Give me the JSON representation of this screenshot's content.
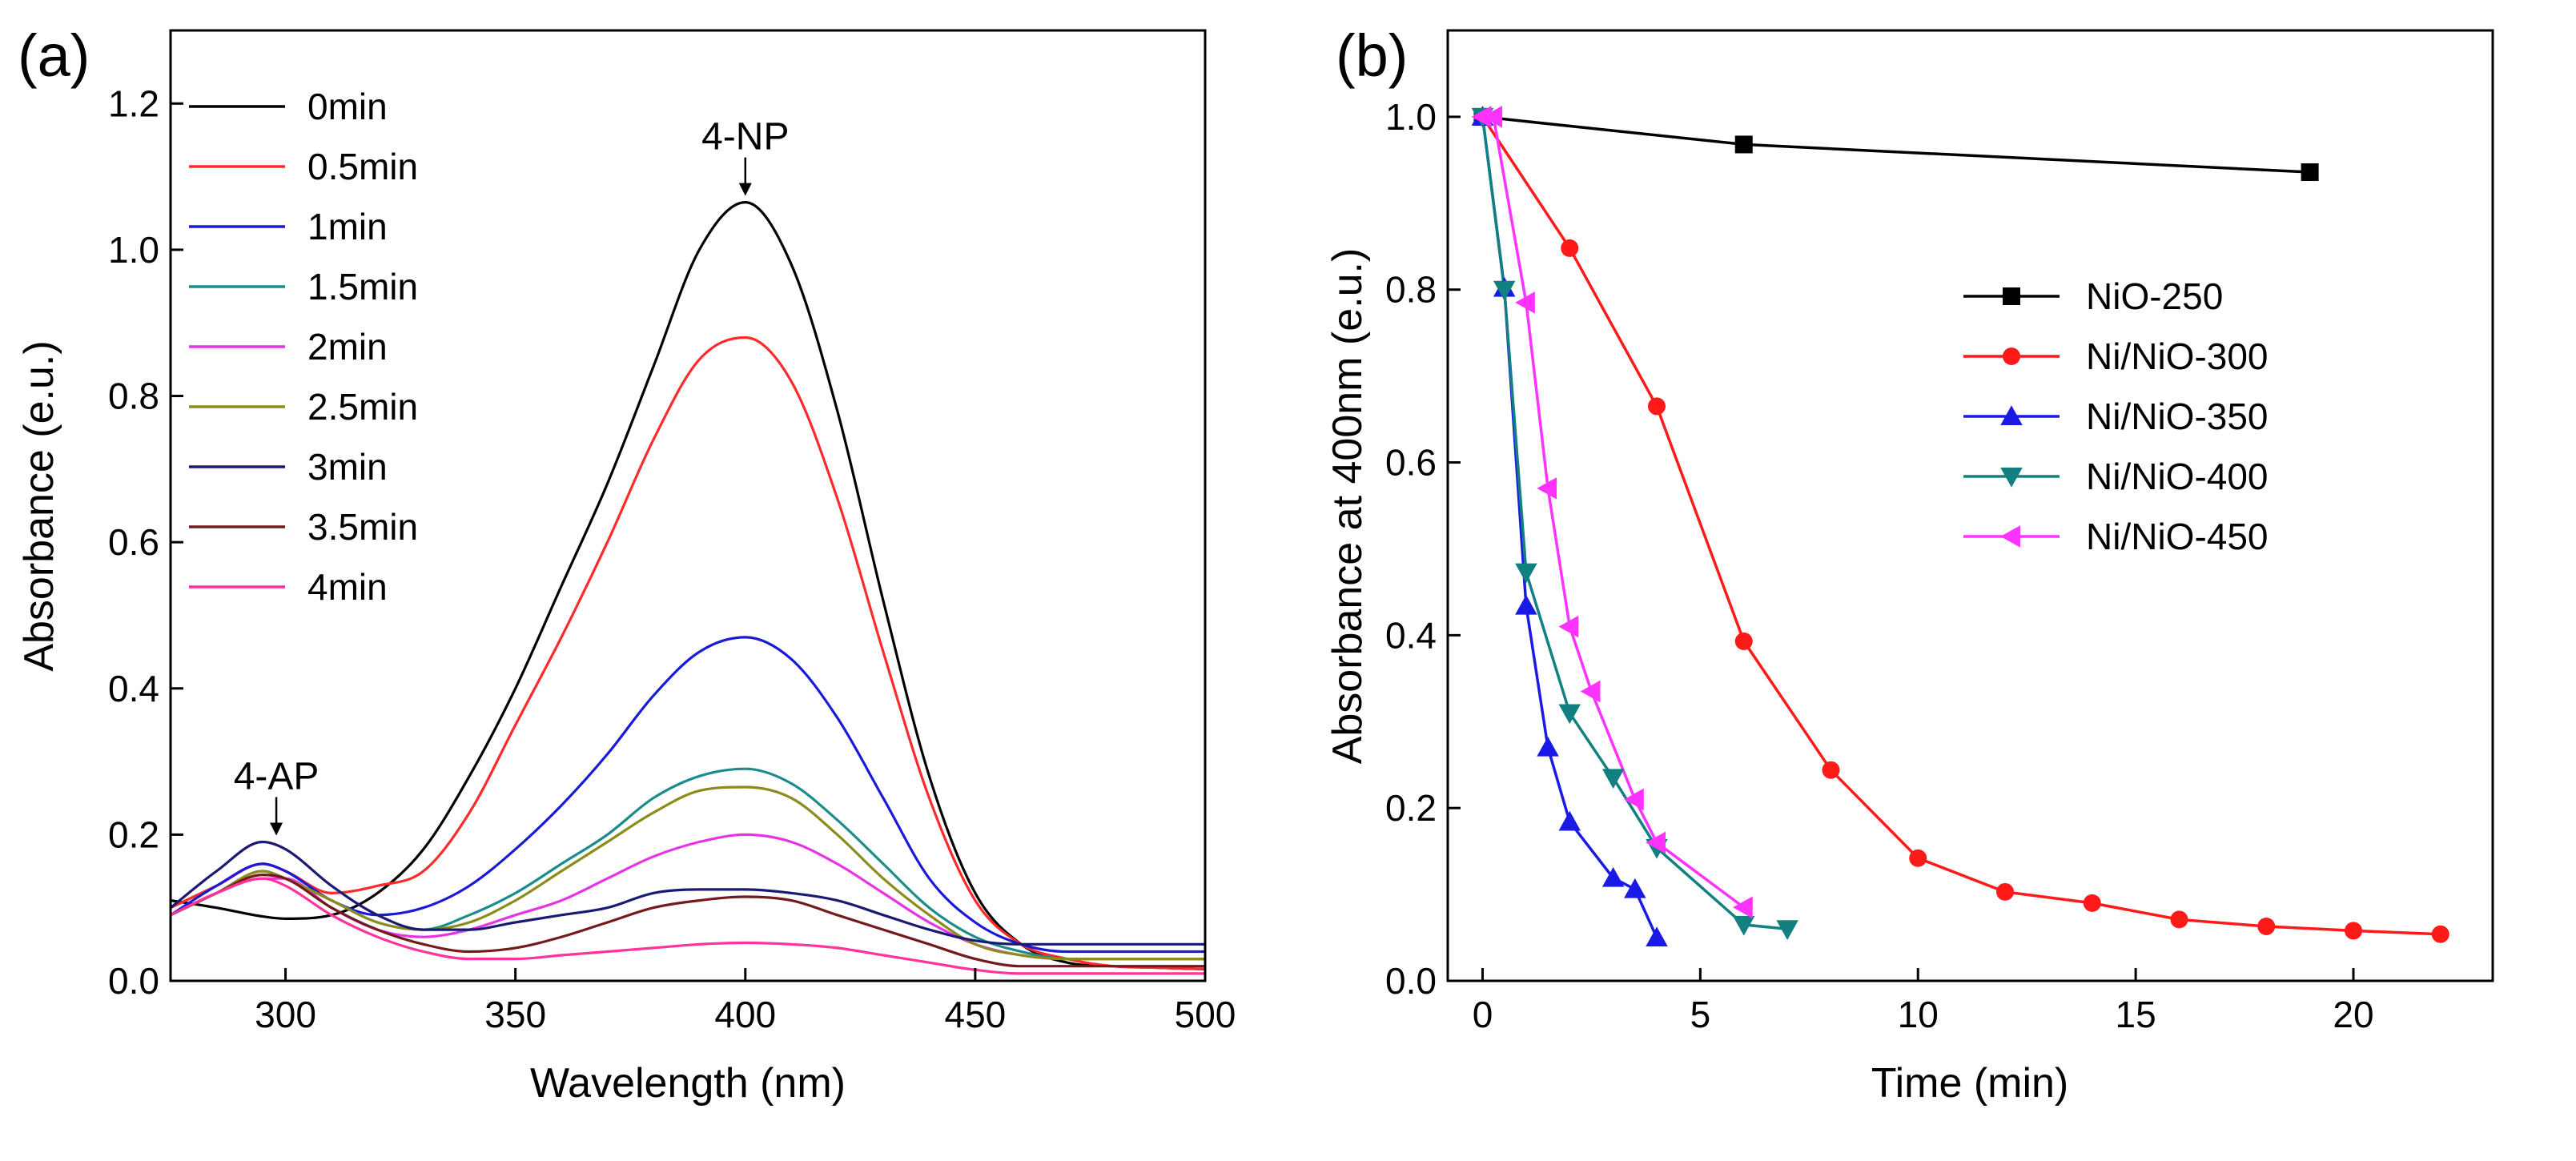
{
  "chart_data": [
    {
      "panel": "(a)",
      "type": "line",
      "title": "",
      "xlabel": "Wavelength (nm)",
      "ylabel": "Absorbance (e.u.)",
      "xlim": [
        275,
        500
      ],
      "ylim": [
        0.0,
        1.3
      ],
      "xticks": [
        300,
        350,
        400,
        450,
        500
      ],
      "xtick_labels": [
        "300",
        "350",
        "400",
        "450",
        "500"
      ],
      "yticks": [
        0.0,
        0.2,
        0.4,
        0.6,
        0.8,
        1.0,
        1.2
      ],
      "ytick_labels": [
        "0.0",
        "0.2",
        "0.4",
        "0.6",
        "0.8",
        "1.0",
        "1.2"
      ],
      "grid": false,
      "legend_position": "top-left",
      "annotations": [
        {
          "text": "4-NP",
          "x": 400,
          "y": 1.065
        },
        {
          "text": "4-AP",
          "x": 298,
          "y": 0.19
        }
      ],
      "series": [
        {
          "name": "0min",
          "color": "#000000",
          "x": [
            275,
            285,
            295,
            300,
            310,
            320,
            330,
            340,
            350,
            360,
            370,
            380,
            390,
            400,
            410,
            420,
            430,
            440,
            450,
            460,
            470,
            480,
            490,
            500
          ],
          "values": [
            0.11,
            0.1,
            0.088,
            0.085,
            0.09,
            0.12,
            0.18,
            0.28,
            0.4,
            0.54,
            0.68,
            0.84,
            1.0,
            1.065,
            0.98,
            0.78,
            0.52,
            0.28,
            0.12,
            0.05,
            0.025,
            0.02,
            0.018,
            0.016
          ]
        },
        {
          "name": "0.5min",
          "color": "#ff2a2a",
          "x": [
            275,
            285,
            295,
            300,
            310,
            320,
            330,
            340,
            350,
            360,
            370,
            380,
            390,
            400,
            410,
            420,
            430,
            440,
            450,
            460,
            470,
            480,
            490,
            500
          ],
          "values": [
            0.1,
            0.13,
            0.16,
            0.15,
            0.12,
            0.13,
            0.15,
            0.23,
            0.35,
            0.47,
            0.6,
            0.74,
            0.85,
            0.88,
            0.82,
            0.66,
            0.45,
            0.25,
            0.11,
            0.05,
            0.03,
            0.02,
            0.018,
            0.016
          ]
        },
        {
          "name": "1min",
          "color": "#1a1ad6",
          "x": [
            275,
            285,
            295,
            300,
            310,
            320,
            330,
            340,
            350,
            360,
            370,
            380,
            390,
            400,
            410,
            420,
            430,
            440,
            450,
            460,
            470,
            480,
            490,
            500
          ],
          "values": [
            0.09,
            0.13,
            0.16,
            0.15,
            0.11,
            0.09,
            0.1,
            0.13,
            0.18,
            0.24,
            0.31,
            0.39,
            0.45,
            0.47,
            0.44,
            0.36,
            0.25,
            0.14,
            0.08,
            0.05,
            0.04,
            0.04,
            0.04,
            0.04
          ]
        },
        {
          "name": "1.5min",
          "color": "#1a8c8c",
          "x": [
            275,
            285,
            295,
            300,
            310,
            320,
            330,
            340,
            350,
            360,
            370,
            380,
            390,
            400,
            410,
            420,
            430,
            440,
            450,
            460,
            470,
            480,
            490,
            500
          ],
          "values": [
            0.09,
            0.12,
            0.15,
            0.14,
            0.11,
            0.08,
            0.07,
            0.09,
            0.12,
            0.16,
            0.2,
            0.25,
            0.28,
            0.29,
            0.27,
            0.22,
            0.16,
            0.1,
            0.06,
            0.04,
            0.03,
            0.03,
            0.03,
            0.03
          ]
        },
        {
          "name": "2min",
          "color": "#e633e6",
          "x": [
            275,
            285,
            295,
            300,
            310,
            320,
            330,
            340,
            350,
            360,
            370,
            380,
            390,
            400,
            410,
            420,
            430,
            440,
            450,
            460,
            470,
            480,
            490,
            500
          ],
          "values": [
            0.09,
            0.12,
            0.14,
            0.14,
            0.1,
            0.07,
            0.06,
            0.07,
            0.09,
            0.11,
            0.14,
            0.17,
            0.19,
            0.2,
            0.19,
            0.16,
            0.12,
            0.08,
            0.05,
            0.035,
            0.03,
            0.03,
            0.03,
            0.03
          ]
        },
        {
          "name": "2.5min",
          "color": "#8c8c1a",
          "x": [
            275,
            285,
            295,
            300,
            310,
            320,
            330,
            340,
            350,
            360,
            370,
            380,
            390,
            400,
            410,
            420,
            430,
            440,
            450,
            460,
            470,
            480,
            490,
            500
          ],
          "values": [
            0.09,
            0.12,
            0.15,
            0.14,
            0.11,
            0.08,
            0.07,
            0.08,
            0.11,
            0.15,
            0.19,
            0.23,
            0.26,
            0.265,
            0.25,
            0.2,
            0.14,
            0.09,
            0.05,
            0.035,
            0.03,
            0.03,
            0.03,
            0.03
          ]
        },
        {
          "name": "3min",
          "color": "#1a1a73",
          "x": [
            275,
            285,
            295,
            300,
            310,
            320,
            330,
            340,
            350,
            360,
            370,
            380,
            390,
            400,
            410,
            420,
            430,
            440,
            450,
            460,
            470,
            480,
            490,
            500
          ],
          "values": [
            0.1,
            0.15,
            0.19,
            0.18,
            0.13,
            0.09,
            0.07,
            0.07,
            0.08,
            0.09,
            0.1,
            0.12,
            0.125,
            0.125,
            0.12,
            0.11,
            0.09,
            0.07,
            0.055,
            0.05,
            0.05,
            0.05,
            0.05,
            0.05
          ]
        },
        {
          "name": "3.5min",
          "color": "#731a1a",
          "x": [
            275,
            285,
            295,
            300,
            310,
            320,
            330,
            340,
            350,
            360,
            370,
            380,
            390,
            400,
            410,
            420,
            430,
            440,
            450,
            460,
            470,
            480,
            490,
            500
          ],
          "values": [
            0.09,
            0.12,
            0.145,
            0.14,
            0.1,
            0.07,
            0.05,
            0.04,
            0.045,
            0.06,
            0.08,
            0.1,
            0.11,
            0.115,
            0.11,
            0.09,
            0.07,
            0.05,
            0.03,
            0.02,
            0.02,
            0.02,
            0.02,
            0.02
          ]
        },
        {
          "name": "4min",
          "color": "#ff3399",
          "x": [
            275,
            285,
            295,
            300,
            310,
            320,
            330,
            340,
            350,
            360,
            370,
            380,
            390,
            400,
            410,
            420,
            430,
            440,
            450,
            460,
            470,
            480,
            490,
            500
          ],
          "values": [
            0.09,
            0.12,
            0.14,
            0.13,
            0.09,
            0.06,
            0.04,
            0.03,
            0.03,
            0.035,
            0.04,
            0.045,
            0.05,
            0.052,
            0.05,
            0.045,
            0.035,
            0.025,
            0.015,
            0.01,
            0.01,
            0.01,
            0.01,
            0.01
          ]
        }
      ]
    },
    {
      "panel": "(b)",
      "type": "line",
      "title": "",
      "xlabel": "Time (min)",
      "ylabel": "Absorbance at 400nm (e.u.)",
      "xlim": [
        -0.8,
        23.2
      ],
      "ylim": [
        0.0,
        1.1
      ],
      "xticks": [
        0,
        5,
        10,
        15,
        20
      ],
      "xtick_labels": [
        "0",
        "5",
        "10",
        "15",
        "20"
      ],
      "yticks": [
        0.0,
        0.2,
        0.4,
        0.6,
        0.8,
        1.0
      ],
      "ytick_labels": [
        "0.0",
        "0.2",
        "0.4",
        "0.6",
        "0.8",
        "1.0"
      ],
      "grid": false,
      "legend_position": "center-right",
      "series": [
        {
          "name": "NiO-250",
          "color": "#000000",
          "marker": "square",
          "x": [
            0,
            6,
            19
          ],
          "values": [
            1.0,
            0.968,
            0.936
          ]
        },
        {
          "name": "Ni/NiO-300",
          "color": "#ff1a1a",
          "marker": "circle",
          "x": [
            0,
            2,
            4,
            6,
            8,
            10,
            12,
            14,
            16,
            18,
            20,
            22
          ],
          "values": [
            1.0,
            0.848,
            0.665,
            0.393,
            0.244,
            0.142,
            0.103,
            0.09,
            0.071,
            0.063,
            0.058,
            0.054
          ]
        },
        {
          "name": "Ni/NiO-350",
          "color": "#1a1ae6",
          "marker": "triangle-up",
          "x": [
            0,
            0.5,
            1,
            1.5,
            2,
            3,
            3.5,
            4
          ],
          "values": [
            1.0,
            0.802,
            0.434,
            0.27,
            0.184,
            0.119,
            0.106,
            0.05
          ]
        },
        {
          "name": "Ni/NiO-400",
          "color": "#128080",
          "marker": "triangle-down",
          "x": [
            0,
            0.5,
            1,
            2,
            3,
            4,
            6,
            7
          ],
          "values": [
            1.0,
            0.8,
            0.473,
            0.31,
            0.235,
            0.154,
            0.065,
            0.06
          ]
        },
        {
          "name": "Ni/NiO-450",
          "color": "#ff33ff",
          "marker": "triangle-left",
          "x": [
            0,
            0.25,
            1,
            1.5,
            2,
            2.5,
            3.5,
            4,
            6
          ],
          "values": [
            1.0,
            1.0,
            0.785,
            0.57,
            0.41,
            0.335,
            0.21,
            0.16,
            0.085
          ]
        }
      ]
    }
  ]
}
